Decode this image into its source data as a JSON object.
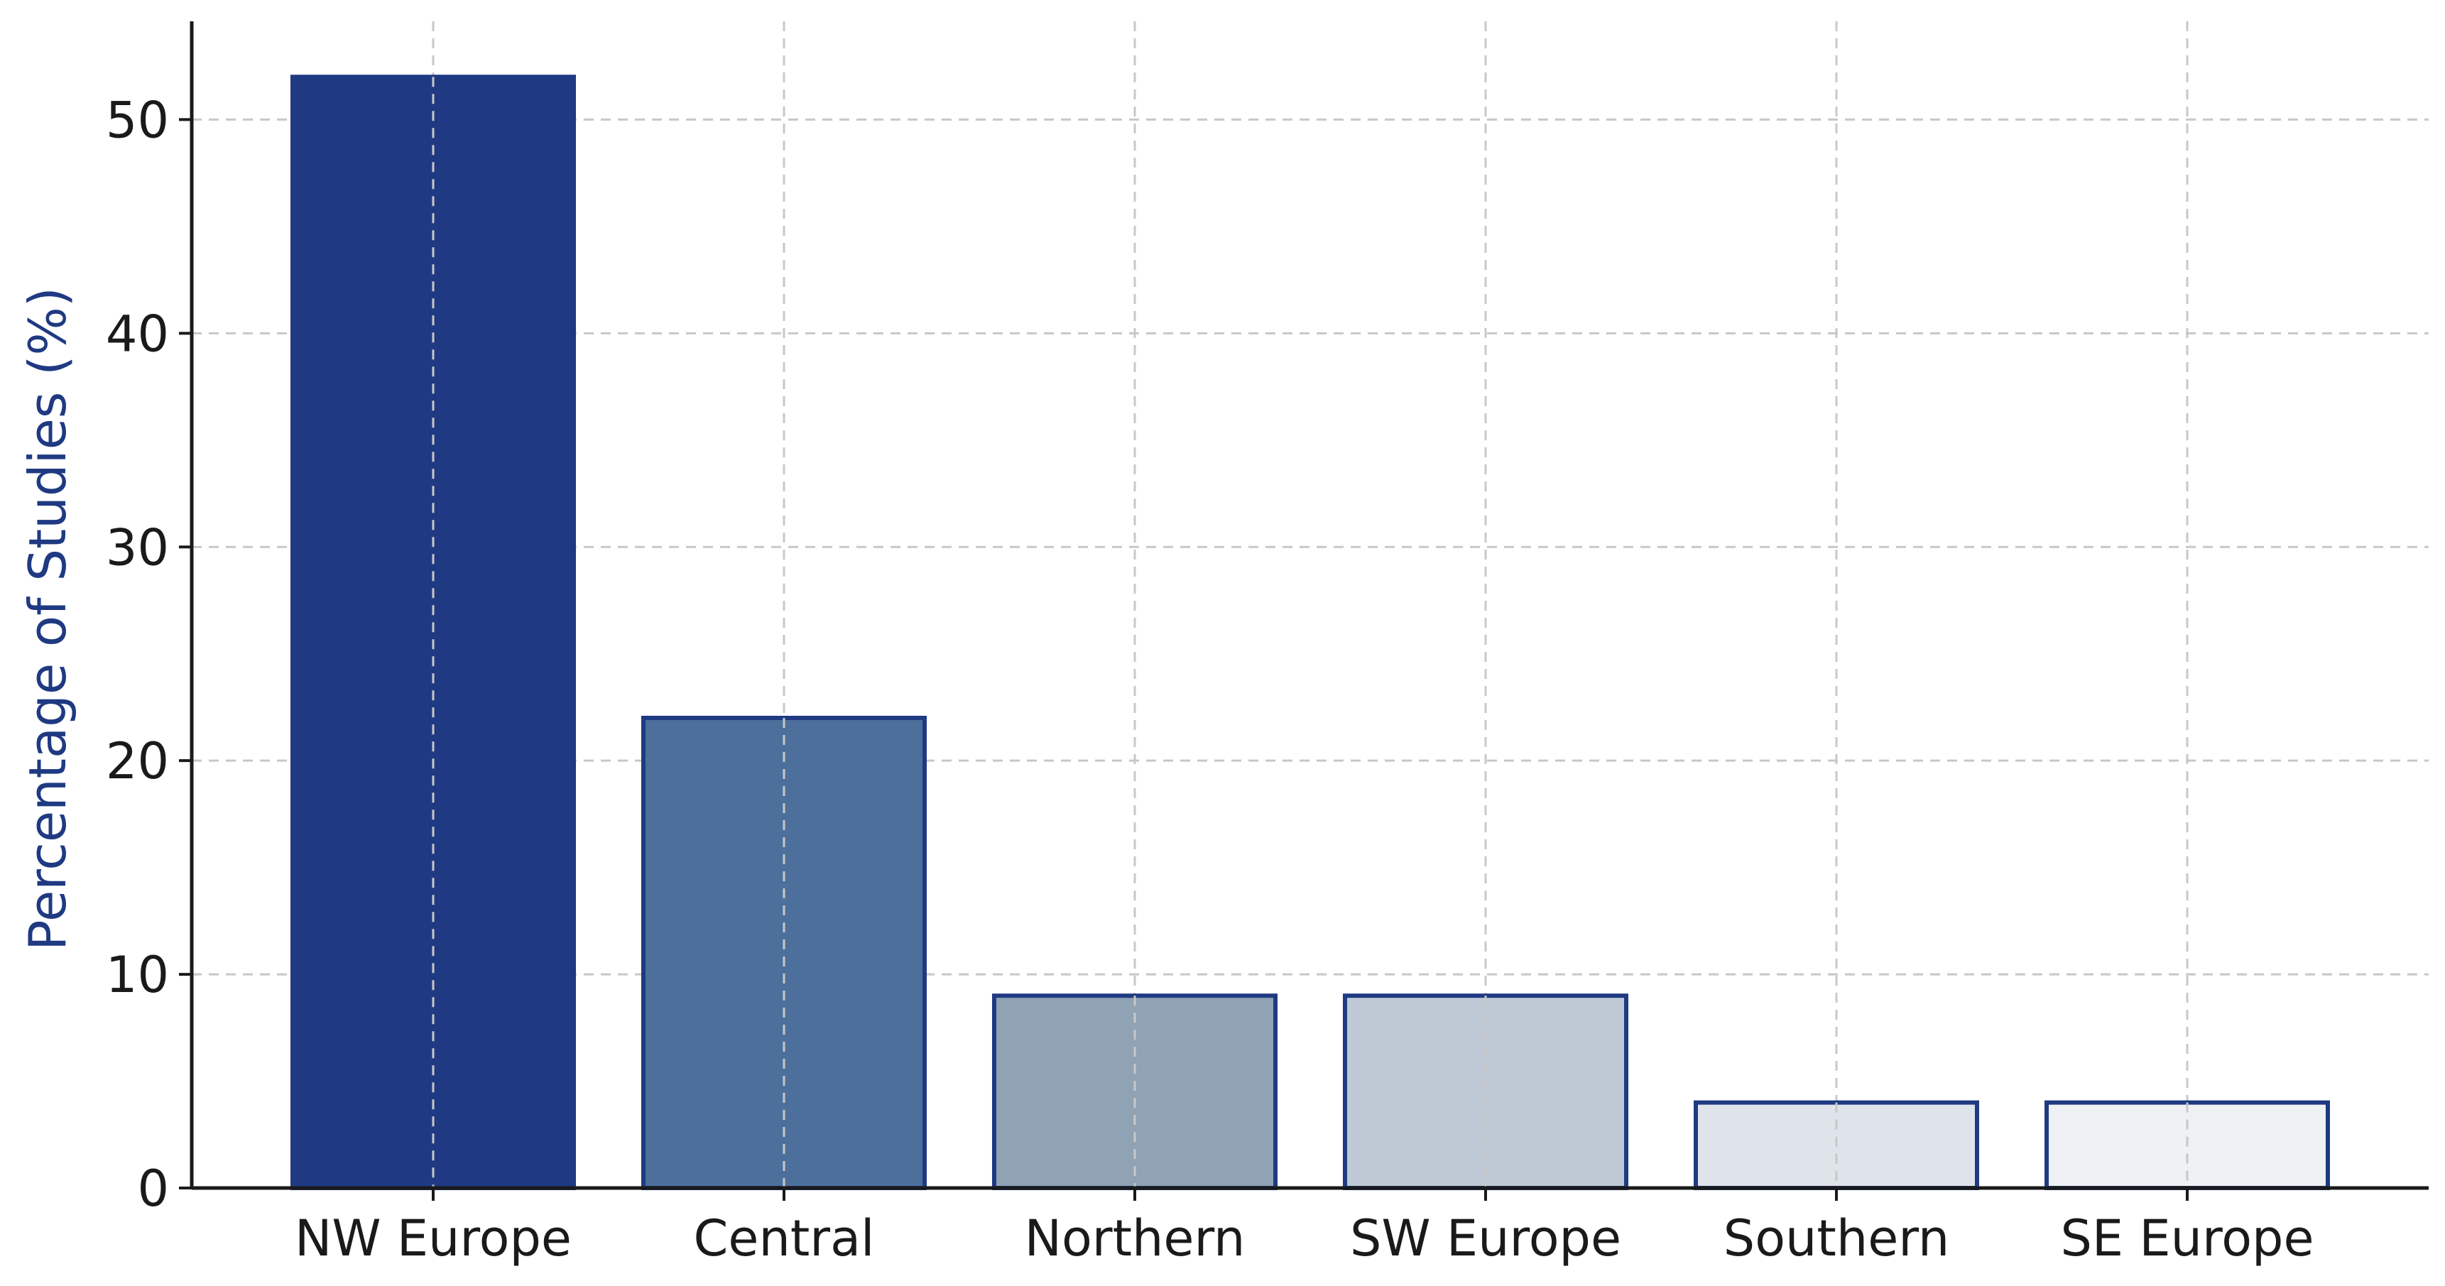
{
  "chart_data": {
    "type": "bar",
    "title": "",
    "xlabel": "",
    "ylabel": "Percentage of Studies (%)",
    "categories": [
      "NW Europe",
      "Central",
      "Northern",
      "SW Europe",
      "Southern",
      "SE Europe"
    ],
    "values": [
      52,
      22,
      9,
      9,
      4,
      4
    ],
    "ylim": [
      0,
      54.6
    ],
    "yticks": [
      0,
      10,
      20,
      30,
      40,
      50
    ],
    "grid": true,
    "legend": "none",
    "colors": {
      "bars": [
        "#1f3a82",
        "#4d6f9b",
        "#8fa3b4",
        "#bec9d5",
        "#dfe3ea",
        "#eff1f4"
      ],
      "bar_edge": "#1f3a82",
      "ylabel": "#1f3a82",
      "axis": "#1a1a1a",
      "grid": "#c8c8c8"
    }
  }
}
